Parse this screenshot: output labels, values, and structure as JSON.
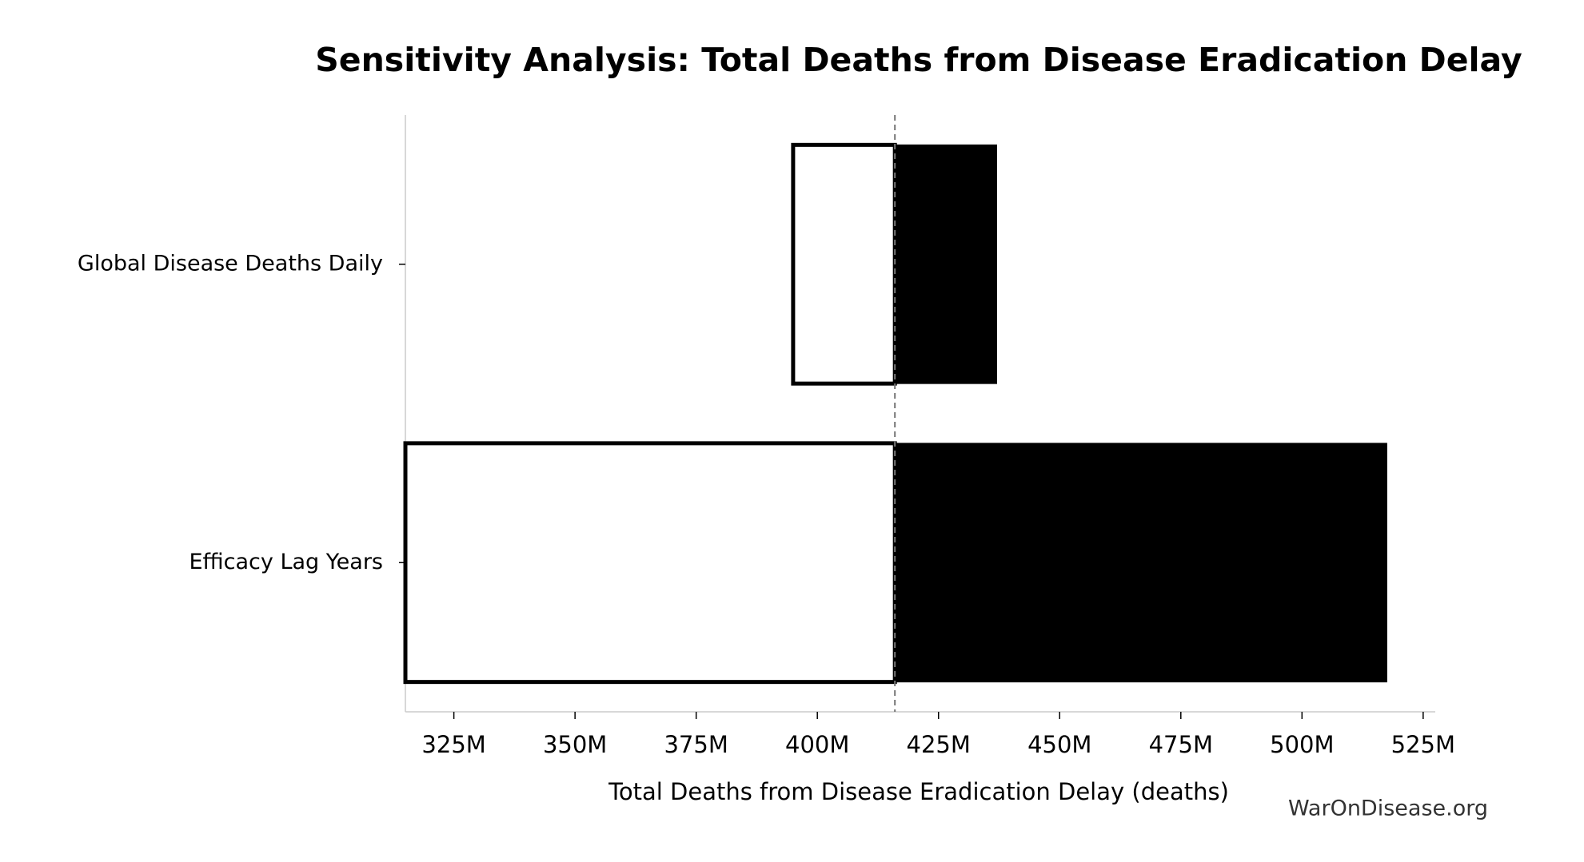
{
  "chart_data": {
    "type": "tornado",
    "title": "Sensitivity Analysis: Total Deaths from Disease Eradication Delay",
    "xlabel": "Total Deaths from Disease Eradication Delay (deaths)",
    "annotation": "WarOnDisease.org",
    "categories": [
      "Global Disease Deaths Daily",
      "Efficacy Lag Years"
    ],
    "baseline": 416000000,
    "series": [
      {
        "color": "#ffffff",
        "values": [
          395000000,
          315000000
        ]
      },
      {
        "color": "#000000",
        "values": [
          437000000,
          517500000
        ]
      }
    ],
    "xlim": [
      315000000,
      527500000
    ],
    "xticks": [
      {
        "value": 325000000,
        "label": "325M"
      },
      {
        "value": 350000000,
        "label": "350M"
      },
      {
        "value": 375000000,
        "label": "375M"
      },
      {
        "value": 400000000,
        "label": "400M"
      },
      {
        "value": 425000000,
        "label": "425M"
      },
      {
        "value": 450000000,
        "label": "450M"
      },
      {
        "value": 475000000,
        "label": "475M"
      },
      {
        "value": 500000000,
        "label": "500M"
      },
      {
        "value": 525000000,
        "label": "525M"
      }
    ]
  }
}
